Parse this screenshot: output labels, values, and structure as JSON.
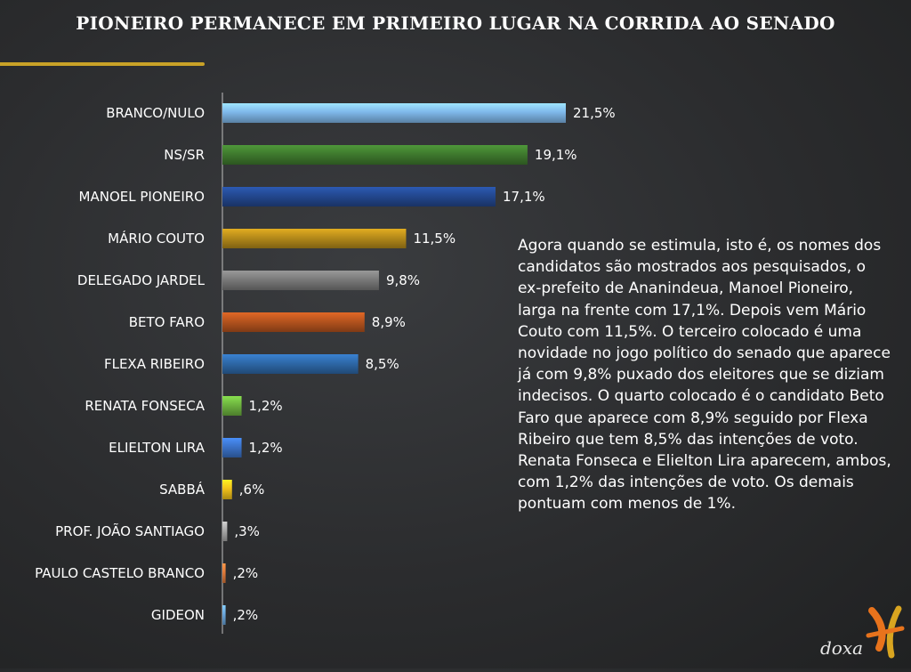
{
  "chart_data": {
    "type": "bar",
    "orientation": "horizontal",
    "title": "PIONEIRO PERMANECE EM PRIMEIRO LUGAR NA CORRIDA AO SENADO",
    "categories": [
      "BRANCO/NULO",
      "NS/SR",
      "MANOEL PIONEIRO",
      "MÁRIO COUTO",
      "DELEGADO JARDEL",
      "BETO FARO",
      "FLEXA RIBEIRO",
      "RENATA FONSECA",
      "ELIELTON LIRA",
      "SABBÁ",
      "PROF. JOÃO SANTIAGO",
      "PAULO CASTELO BRANCO",
      "GIDEON"
    ],
    "values": [
      21.5,
      19.1,
      17.1,
      11.5,
      9.8,
      8.9,
      8.5,
      1.2,
      1.2,
      0.6,
      0.3,
      0.2,
      0.2
    ],
    "value_labels": [
      "21,5%",
      "19,1%",
      "17,1%",
      "11,5%",
      "9,8%",
      "8,9%",
      "8,5%",
      "1,2%",
      "1,2%",
      ",6%",
      ",3%",
      ",2%",
      ",2%"
    ],
    "colors": [
      "#7fb8ea",
      "#3f7a2e",
      "#23488f",
      "#b58a1a",
      "#7a7a7a",
      "#b5531e",
      "#2e68a8",
      "#6db33f",
      "#3b72c8",
      "#f2c21b",
      "#a8a8a8",
      "#e07a3a",
      "#6aa6dc"
    ],
    "xlim": [
      0,
      22
    ],
    "grid": false,
    "legend": "none"
  },
  "description": "Agora quando se estimula, isto é, os nomes dos candidatos são mostrados aos pesquisados, o ex-prefeito de Ananindeua, Manoel Pioneiro, larga na frente com 17,1%. Depois vem Mário Couto com 11,5%. O terceiro colocado é uma novidade no jogo político do senado que aparece já com 9,8% puxado dos eleitores que se diziam indecisos. O quarto colocado é o candidato Beto Faro que aparece com 8,9% seguido por Flexa Ribeiro que tem 8,5% das intenções de voto. Renata Fonseca e Elielton Lira aparecem, ambos, com 1,2% das intenções de voto. Os demais pontuam com menos de 1%.",
  "logo": {
    "text": "doxa",
    "colors": {
      "orange": "#e8731c",
      "gold": "#d9a520"
    }
  }
}
